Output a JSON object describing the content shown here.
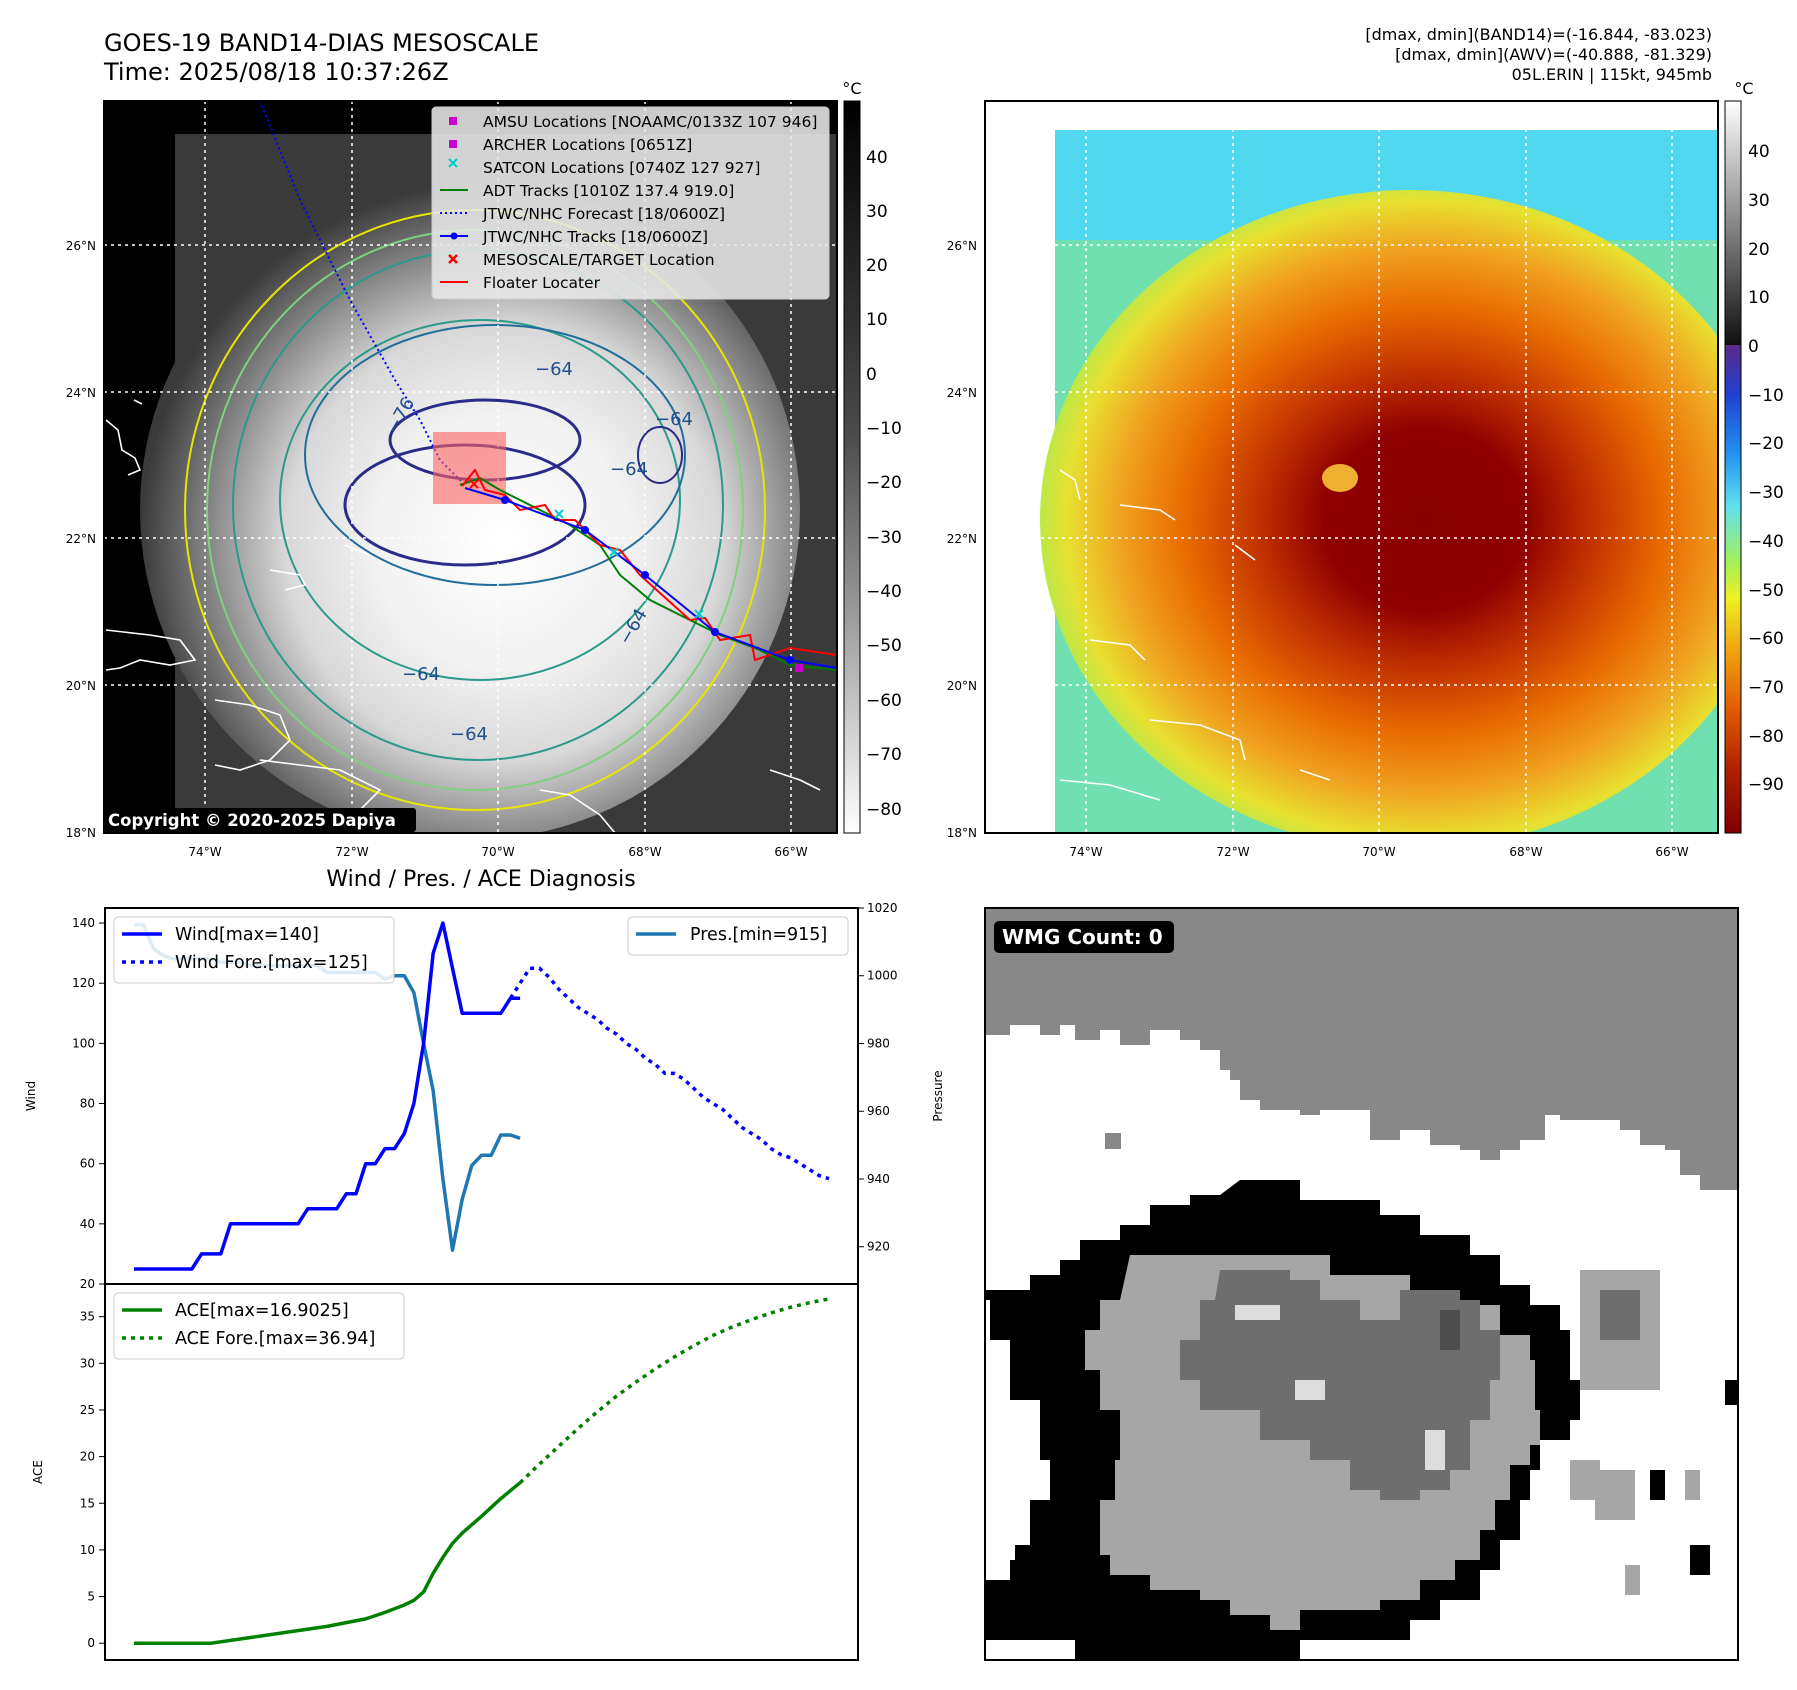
{
  "header": {
    "title_line1": "GOES-19 BAND14-DIAS MESOSCALE",
    "title_line2": "Time: 2025/08/18 10:37:26Z",
    "info_line1": "[dmax, dmin](BAND14)=(-16.844, -83.023)",
    "info_line2": "[dmax, dmin](AWV)=(-40.888, -81.329)",
    "info_line3": "05L.ERIN | 115kt, 945mb"
  },
  "map_axes": {
    "lat_labels": [
      "26°N",
      "24°N",
      "22°N",
      "20°N",
      "18°N"
    ],
    "lon_labels": [
      "74°W",
      "72°W",
      "70°W",
      "68°W",
      "66°W"
    ]
  },
  "colorbar_left": {
    "unit": "°C",
    "ticks": [
      "40",
      "30",
      "20",
      "10",
      "0",
      "−10",
      "−20",
      "−30",
      "−40",
      "−50",
      "−60",
      "−70",
      "−80"
    ]
  },
  "colorbar_right": {
    "unit": "°C",
    "ticks": [
      "40",
      "30",
      "20",
      "10",
      "0",
      "−10",
      "−20",
      "−30",
      "−40",
      "−50",
      "−60",
      "−70",
      "−80",
      "−90"
    ]
  },
  "legend_map": {
    "items": [
      {
        "label": "AMSU Locations [NOAAMC/0133Z 107 946]",
        "color": "#cc00cc",
        "marker": "square"
      },
      {
        "label": "ARCHER Locations [0651Z]",
        "color": "#cc00cc",
        "marker": "square"
      },
      {
        "label": "SATCON Locations [0740Z 127 927]",
        "color": "#00cccc",
        "marker": "x"
      },
      {
        "label": "ADT Tracks [1010Z 137.4 919.0]",
        "color": "#008000",
        "marker": "line"
      },
      {
        "label": "JTWC/NHC Forecast [18/0600Z]",
        "color": "#0000ff",
        "marker": "dotted"
      },
      {
        "label": "JTWC/NHC Tracks [18/0600Z]",
        "color": "#0000ff",
        "marker": "line-dot"
      },
      {
        "label": "MESOSCALE/TARGET Location",
        "color": "#ff0000",
        "marker": "x"
      },
      {
        "label": "Floater Locater",
        "color": "#ff0000",
        "marker": "line"
      }
    ]
  },
  "contour_labels": [
    "−64",
    "−76",
    "−64",
    "−64",
    "−64",
    "−64",
    "−64"
  ],
  "copyright": "Copyright © 2020-2025 Dapiya",
  "wmg": {
    "label": "WMG Count: 0"
  },
  "chart_data": [
    {
      "type": "line",
      "title": "Wind / Pres. / ACE Diagnosis",
      "ylabel": "Wind",
      "ylim": [
        20,
        145
      ],
      "yticks": [
        20,
        40,
        60,
        80,
        100,
        120,
        140
      ],
      "series": [
        {
          "name": "Wind[max=140]",
          "style": "solid",
          "color": "#0000ff",
          "x": [
            0,
            1,
            2,
            3,
            4,
            5,
            6,
            7,
            8,
            9,
            10,
            11,
            12,
            13,
            14,
            15,
            16,
            17,
            18,
            19,
            20,
            21,
            22,
            23,
            24,
            25,
            26,
            27,
            28,
            29,
            30,
            31,
            32,
            33,
            34,
            35,
            36,
            37,
            38,
            39,
            40
          ],
          "values": [
            25,
            25,
            25,
            25,
            25,
            25,
            25,
            30,
            30,
            30,
            40,
            40,
            40,
            40,
            40,
            40,
            40,
            40,
            45,
            45,
            45,
            45,
            50,
            50,
            60,
            60,
            65,
            65,
            70,
            80,
            100,
            130,
            140,
            125,
            110,
            110,
            110,
            110,
            110,
            115,
            115
          ]
        },
        {
          "name": "Wind Fore.[max=125]",
          "style": "dotted",
          "color": "#0000ff",
          "x": [
            39,
            40,
            41,
            42,
            43,
            44,
            45,
            46,
            47,
            48,
            49,
            50,
            51,
            52,
            53,
            54,
            55,
            56,
            57,
            58,
            59,
            60,
            61,
            62,
            63,
            64,
            65,
            66,
            67,
            68,
            69,
            70,
            71,
            72
          ],
          "values": [
            115,
            120,
            125,
            125,
            122,
            118,
            115,
            112,
            110,
            108,
            105,
            103,
            100,
            98,
            95,
            93,
            90,
            90,
            88,
            85,
            82,
            80,
            78,
            75,
            72,
            70,
            68,
            65,
            63,
            62,
            60,
            58,
            56,
            55
          ]
        }
      ],
      "secondary_axis": {
        "ylabel": "Pressure",
        "ylim": [
          909,
          1020
        ],
        "yticks": [
          920,
          940,
          960,
          980,
          1000,
          1020
        ],
        "series": [
          {
            "name": "Pres.[min=915]",
            "style": "solid",
            "color": "#1f77b4",
            "x": [
              0,
              1,
              2,
              3,
              4,
              5,
              6,
              7,
              8,
              9,
              10,
              11,
              12,
              13,
              14,
              15,
              16,
              17,
              18,
              19,
              20,
              21,
              22,
              23,
              24,
              25,
              26,
              27,
              28,
              29,
              30,
              31,
              32,
              33,
              34,
              35,
              36,
              37,
              38,
              39,
              40
            ],
            "values": [
              1015,
              1015,
              1008,
              1006,
              1005,
              1005,
              1005,
              1005,
              1005,
              1004,
              1004,
              1004,
              1003,
              1003,
              1003,
              1003,
              1003,
              1003,
              1003,
              1003,
              1001,
              1001,
              1001,
              1001,
              1001,
              1001,
              999,
              1000,
              1000,
              995,
              980,
              966,
              940,
              919,
              934,
              944,
              947,
              947,
              953,
              953,
              952
            ]
          }
        ]
      },
      "x_range": [
        -3,
        75
      ]
    },
    {
      "type": "line",
      "ylabel": "ACE",
      "ylim": [
        -1.8,
        38.5
      ],
      "yticks": [
        0,
        5,
        10,
        15,
        20,
        25,
        30,
        35
      ],
      "series": [
        {
          "name": "ACE[max=16.9025]",
          "style": "solid",
          "color": "#008000",
          "x": [
            0,
            4,
            8,
            12,
            16,
            20,
            24,
            26,
            28,
            29,
            30,
            31,
            32,
            33,
            34,
            36,
            38,
            40
          ],
          "values": [
            0,
            0,
            0,
            0.6,
            1.2,
            1.8,
            2.6,
            3.3,
            4.1,
            4.6,
            5.5,
            7.5,
            9.2,
            10.7,
            11.8,
            13.6,
            15.5,
            17.2
          ]
        },
        {
          "name": "ACE Fore.[max=36.94]",
          "style": "dotted",
          "color": "#008000",
          "x": [
            40,
            42,
            44,
            46,
            48,
            50,
            52,
            54,
            56,
            58,
            60,
            62,
            64,
            66,
            68,
            70,
            72
          ],
          "values": [
            17.2,
            19.2,
            21.1,
            23,
            24.8,
            26.5,
            28,
            29.4,
            30.7,
            31.9,
            33,
            33.9,
            34.7,
            35.4,
            36,
            36.5,
            36.9
          ]
        }
      ],
      "x_range": [
        -3,
        75
      ]
    }
  ]
}
